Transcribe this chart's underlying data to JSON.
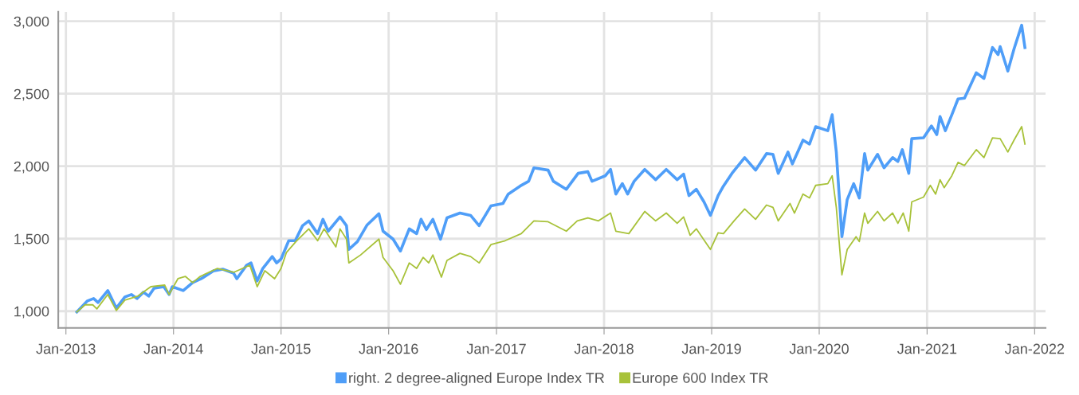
{
  "chart_data": {
    "type": "line",
    "xlim": [
      "2012-12-06",
      "2022-02-07"
    ],
    "ylim": [
      885,
      3065
    ],
    "xticks": [
      {
        "value": "2013-01-01",
        "label": "Jan-2013"
      },
      {
        "value": "2014-01-01",
        "label": "Jan-2014"
      },
      {
        "value": "2015-01-01",
        "label": "Jan-2015"
      },
      {
        "value": "2016-01-01",
        "label": "Jan-2016"
      },
      {
        "value": "2017-01-01",
        "label": "Jan-2017"
      },
      {
        "value": "2018-01-01",
        "label": "Jan-2018"
      },
      {
        "value": "2019-01-01",
        "label": "Jan-2019"
      },
      {
        "value": "2020-01-01",
        "label": "Jan-2020"
      },
      {
        "value": "2021-01-01",
        "label": "Jan-2021"
      },
      {
        "value": "2022-01-01",
        "label": "Jan-2022"
      }
    ],
    "yticks": [
      {
        "value": 1000,
        "label": "1,000"
      },
      {
        "value": 1500,
        "label": "1,500"
      },
      {
        "value": 2000,
        "label": "2,000"
      },
      {
        "value": 2500,
        "label": "2,500"
      },
      {
        "value": 3000,
        "label": "3,000"
      }
    ],
    "grid": true,
    "legend": "bottom",
    "marker": "none",
    "line_style": "solid",
    "series": [
      {
        "name": "right. 2 degree-aligned Europe Index TR",
        "color": "#4f9ef8",
        "x": [
          "2013-02-07",
          "2013-03-15",
          "2013-04-05",
          "2013-04-20",
          "2013-05-23",
          "2013-06-21",
          "2013-07-20",
          "2013-08-11",
          "2013-08-30",
          "2013-09-21",
          "2013-10-09",
          "2013-10-27",
          "2013-11-29",
          "2013-12-17",
          "2013-12-28",
          "2014-02-03",
          "2014-03-07",
          "2014-04-05",
          "2014-05-16",
          "2014-06-17",
          "2014-07-24",
          "2014-08-04",
          "2014-09-06",
          "2014-09-21",
          "2014-10-12",
          "2014-10-31",
          "2014-12-02",
          "2014-12-17",
          "2015-01-01",
          "2015-01-27",
          "2015-02-18",
          "2015-03-15",
          "2015-04-05",
          "2015-05-05",
          "2015-05-23",
          "2015-06-10",
          "2015-07-20",
          "2015-08-11",
          "2015-08-19",
          "2015-09-17",
          "2015-10-20",
          "2015-11-29",
          "2015-12-13",
          "2016-01-16",
          "2016-02-10",
          "2016-03-11",
          "2016-04-05",
          "2016-04-20",
          "2016-05-08",
          "2016-05-30",
          "2016-06-25",
          "2016-07-17",
          "2016-08-30",
          "2016-10-05",
          "2016-11-03",
          "2016-12-13",
          "2017-01-23",
          "2017-02-10",
          "2017-03-22",
          "2017-04-20",
          "2017-05-08",
          "2017-06-25",
          "2017-07-13",
          "2017-08-26",
          "2017-10-05",
          "2017-11-07",
          "2017-11-21",
          "2018-01-05",
          "2018-01-23",
          "2018-02-10",
          "2018-03-04",
          "2018-03-22",
          "2018-04-13",
          "2018-05-19",
          "2018-06-25",
          "2018-07-31",
          "2018-09-06",
          "2018-09-28",
          "2018-10-16",
          "2018-11-10",
          "2018-12-06",
          "2018-12-28",
          "2019-01-23",
          "2019-02-10",
          "2019-03-11",
          "2019-04-23",
          "2019-05-30",
          "2019-07-06",
          "2019-07-28",
          "2019-08-15",
          "2019-09-17",
          "2019-10-02",
          "2019-11-07",
          "2019-11-29",
          "2019-12-20",
          "2020-01-30",
          "2020-02-14",
          "2020-02-28",
          "2020-03-18",
          "2020-04-05",
          "2020-04-27",
          "2020-05-16",
          "2020-06-03",
          "2020-06-14",
          "2020-07-17",
          "2020-08-08",
          "2020-09-06",
          "2020-09-24",
          "2020-10-09",
          "2020-10-31",
          "2020-11-10",
          "2020-12-20",
          "2021-01-16",
          "2021-02-03",
          "2021-02-14",
          "2021-03-04",
          "2021-03-26",
          "2021-04-16",
          "2021-05-08",
          "2021-06-17",
          "2021-07-13",
          "2021-08-11",
          "2021-08-30",
          "2021-09-06",
          "2021-10-02",
          "2021-10-23",
          "2021-11-18",
          "2021-11-29"
        ],
        "values": [
          995,
          1071,
          1087,
          1060,
          1142,
          1022,
          1098,
          1115,
          1087,
          1131,
          1104,
          1158,
          1169,
          1115,
          1169,
          1142,
          1197,
          1224,
          1278,
          1290,
          1262,
          1224,
          1317,
          1333,
          1208,
          1295,
          1377,
          1333,
          1360,
          1486,
          1486,
          1590,
          1623,
          1535,
          1634,
          1552,
          1650,
          1590,
          1426,
          1480,
          1595,
          1672,
          1552,
          1497,
          1415,
          1568,
          1535,
          1634,
          1563,
          1634,
          1497,
          1644,
          1677,
          1661,
          1590,
          1726,
          1743,
          1808,
          1863,
          1896,
          1989,
          1973,
          1896,
          1841,
          1951,
          1962,
          1896,
          1934,
          1978,
          1808,
          1880,
          1808,
          1896,
          1978,
          1907,
          1978,
          1907,
          1945,
          1797,
          1841,
          1754,
          1661,
          1797,
          1863,
          1951,
          2060,
          1973,
          2087,
          2082,
          1951,
          2098,
          2016,
          2180,
          2153,
          2273,
          2245,
          2355,
          2098,
          1514,
          1770,
          1880,
          1781,
          2087,
          1973,
          2082,
          1989,
          2060,
          2033,
          2114,
          1951,
          2190,
          2196,
          2278,
          2218,
          2343,
          2245,
          2355,
          2464,
          2470,
          2645,
          2606,
          2819,
          2770,
          2825,
          2656,
          2809,
          2973,
          2819
        ]
      },
      {
        "name": "Europe 600 Index TR",
        "color": "#a8c23a",
        "x": [
          "2013-02-07",
          "2013-03-07",
          "2013-04-02",
          "2013-04-16",
          "2013-05-23",
          "2013-06-21",
          "2013-07-20",
          "2013-09-02",
          "2013-10-16",
          "2013-12-02",
          "2013-12-17",
          "2014-01-16",
          "2014-02-10",
          "2014-03-07",
          "2014-04-02",
          "2014-05-30",
          "2014-07-24",
          "2014-09-17",
          "2014-10-12",
          "2014-11-07",
          "2014-12-10",
          "2015-01-01",
          "2015-01-19",
          "2015-02-21",
          "2015-04-05",
          "2015-05-05",
          "2015-05-27",
          "2015-07-06",
          "2015-07-20",
          "2015-08-11",
          "2015-08-19",
          "2015-09-28",
          "2015-11-29",
          "2015-12-13",
          "2016-01-16",
          "2016-02-10",
          "2016-03-11",
          "2016-04-05",
          "2016-04-27",
          "2016-05-16",
          "2016-05-30",
          "2016-06-28",
          "2016-07-17",
          "2016-08-30",
          "2016-10-05",
          "2016-11-03",
          "2016-12-13",
          "2017-01-30",
          "2017-03-26",
          "2017-05-08",
          "2017-06-25",
          "2017-08-26",
          "2017-10-02",
          "2017-11-07",
          "2017-12-13",
          "2018-01-23",
          "2018-02-10",
          "2018-03-26",
          "2018-05-19",
          "2018-06-25",
          "2018-07-31",
          "2018-09-06",
          "2018-09-28",
          "2018-10-20",
          "2018-11-10",
          "2018-12-28",
          "2019-01-23",
          "2019-02-10",
          "2019-03-18",
          "2019-04-23",
          "2019-05-30",
          "2019-07-06",
          "2019-07-28",
          "2019-08-15",
          "2019-09-24",
          "2019-10-09",
          "2019-11-07",
          "2019-11-29",
          "2019-12-20",
          "2020-01-30",
          "2020-02-14",
          "2020-02-28",
          "2020-03-18",
          "2020-04-05",
          "2020-05-05",
          "2020-05-16",
          "2020-06-03",
          "2020-06-14",
          "2020-07-17",
          "2020-08-08",
          "2020-09-06",
          "2020-09-24",
          "2020-10-12",
          "2020-10-31",
          "2020-11-10",
          "2020-12-20",
          "2021-01-12",
          "2021-01-30",
          "2021-02-14",
          "2021-02-28",
          "2021-03-26",
          "2021-04-16",
          "2021-05-08",
          "2021-06-17",
          "2021-07-13",
          "2021-08-11",
          "2021-09-06",
          "2021-10-02",
          "2021-10-23",
          "2021-11-18",
          "2021-11-29"
        ],
        "values": [
          995,
          1044,
          1044,
          1016,
          1115,
          1005,
          1076,
          1104,
          1169,
          1180,
          1115,
          1224,
          1240,
          1197,
          1240,
          1295,
          1268,
          1317,
          1169,
          1279,
          1224,
          1295,
          1404,
          1481,
          1568,
          1486,
          1568,
          1443,
          1568,
          1497,
          1333,
          1388,
          1497,
          1371,
          1279,
          1186,
          1333,
          1295,
          1371,
          1333,
          1388,
          1235,
          1350,
          1399,
          1377,
          1333,
          1459,
          1486,
          1535,
          1623,
          1617,
          1552,
          1623,
          1644,
          1623,
          1677,
          1552,
          1535,
          1688,
          1623,
          1677,
          1606,
          1650,
          1524,
          1568,
          1426,
          1541,
          1535,
          1623,
          1705,
          1634,
          1732,
          1716,
          1623,
          1743,
          1677,
          1808,
          1781,
          1868,
          1880,
          1934,
          1716,
          1251,
          1426,
          1514,
          1480,
          1677,
          1606,
          1688,
          1623,
          1677,
          1606,
          1677,
          1552,
          1754,
          1787,
          1868,
          1808,
          1907,
          1852,
          1934,
          2027,
          2005,
          2114,
          2060,
          2196,
          2190,
          2098,
          2180,
          2273,
          2153
        ]
      }
    ]
  }
}
